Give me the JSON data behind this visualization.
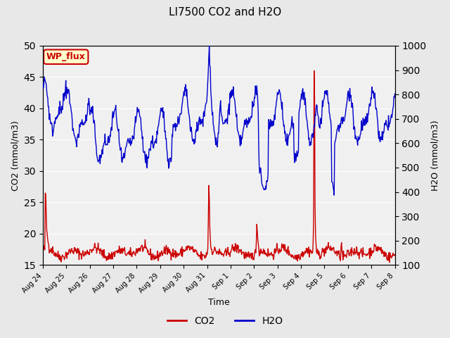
{
  "title": "LI7500 CO2 and H2O",
  "xlabel": "Time",
  "ylabel_left": "CO2 (mmol/m3)",
  "ylabel_right": "H2O (mmol/m3)",
  "ylim_left": [
    15,
    50
  ],
  "ylim_right": [
    100,
    1000
  ],
  "yticks_left": [
    15,
    20,
    25,
    30,
    35,
    40,
    45,
    50
  ],
  "yticks_right": [
    100,
    200,
    300,
    400,
    500,
    600,
    700,
    800,
    900,
    1000
  ],
  "xtick_labels": [
    "Aug 24",
    "Aug 25",
    "Aug 26",
    "Aug 27",
    "Aug 28",
    "Aug 29",
    "Aug 30",
    "Aug 31",
    "Sep 1",
    "Sep 2",
    "Sep 3",
    "Sep 4",
    "Sep 5",
    "Sep 6",
    "Sep 7",
    "Sep 8"
  ],
  "n_ticks": 16,
  "co2_color": "#cc0000",
  "h2o_color": "#0000cc",
  "background_color": "#e8e8e8",
  "plot_bg_color": "#f0f0f0",
  "annotation_text": "WP_flux",
  "annotation_color": "#cc0000",
  "annotation_bg": "#ffffcc",
  "legend_co2": "CO2",
  "legend_h2o": "H2O"
}
